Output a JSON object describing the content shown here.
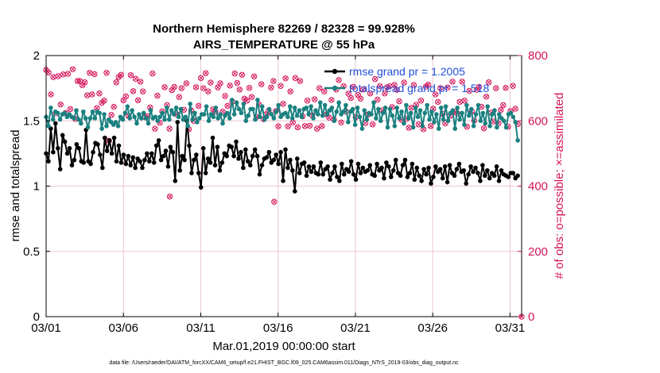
{
  "chart_data": {
    "type": "line",
    "title": "Northern Hemisphere 82269 / 82328 = 99.928%",
    "subtitle": "AIRS_TEMPERATURE @ 55 hPa",
    "xlabel": "Mar.01,2019 00:00:00 start",
    "ylabel": "rmse and totalspread",
    "ylabel_right": "# of obs: o=possible; ×=assimilated",
    "x_tick_labels": [
      "03/01",
      "03/06",
      "03/11",
      "03/16",
      "03/21",
      "03/26",
      "03/31"
    ],
    "x_tick_days": [
      0,
      5,
      10,
      15,
      20,
      25,
      30
    ],
    "xlim": [
      0,
      30.75
    ],
    "ylim": [
      0,
      2
    ],
    "y_ticks": [
      0,
      0.5,
      1,
      1.5,
      2
    ],
    "y_tick_labels": [
      "0",
      "0.5",
      "1",
      "1.5",
      "2"
    ],
    "ylim_right": [
      0,
      800
    ],
    "y_ticks_right": [
      0,
      200,
      400,
      600,
      800
    ],
    "y_tick_labels_right": [
      "0",
      "200",
      "400",
      "600",
      "800"
    ],
    "legend_position": "top-right",
    "colors": {
      "rmse": "#000000",
      "spread": "#1a8080",
      "obs": "#d4145a",
      "legend_text": "#1f4fd8",
      "grid": "#e8c8d0"
    },
    "series": [
      {
        "name": "rmse grand pr = 1.2005",
        "values": [
          1.25,
          1.19,
          1.44,
          1.26,
          1.48,
          1.29,
          1.13,
          1.39,
          1.34,
          1.25,
          1.29,
          1.16,
          1.2,
          1.32,
          1.29,
          1.19,
          1.18,
          1.43,
          1.19,
          1.17,
          1.26,
          1.33,
          1.32,
          1.24,
          1.14,
          1.37,
          1.27,
          1.35,
          1.25,
          1.37,
          1.19,
          1.31,
          1.18,
          1.24,
          1.17,
          1.23,
          1.16,
          1.22,
          1.14,
          1.21,
          1.19,
          1.14,
          1.2,
          1.25,
          1.19,
          1.25,
          1.18,
          1.31,
          1.35,
          1.2,
          1.23,
          1.27,
          1.15,
          1.3,
          1.26,
          1.04,
          1.49,
          1.12,
          1.23,
          1.2,
          1.5,
          1.31,
          1.1,
          1.2,
          1.24,
          1.1,
          0.99,
          1.29,
          1.1,
          1.21,
          1.18,
          1.37,
          1.16,
          1.3,
          1.12,
          1.18,
          1.25,
          1.23,
          1.31,
          1.3,
          1.23,
          1.34,
          1.21,
          1.26,
          1.14,
          1.28,
          1.19,
          1.16,
          1.23,
          1.28,
          1.23,
          1.09,
          1.16,
          1.21,
          1.22,
          1.26,
          1.18,
          1.2,
          1.24,
          1.17,
          1.26,
          1.04,
          1.28,
          1.14,
          1.2,
          1.12,
          0.96,
          1.21,
          1.1,
          1.17,
          1.18,
          1.08,
          1.15,
          1.11,
          1.15,
          1.1,
          1.09,
          1.18,
          1.09,
          1.13,
          1.15,
          1.05,
          1.1,
          1.15,
          1.07,
          1.04,
          1.17,
          1.09,
          1.13,
          1.11,
          1.19,
          1.09,
          1.05,
          1.17,
          1.1,
          1.14,
          1.11,
          1.12,
          1.16,
          1.09,
          1.08,
          1.17,
          1.12,
          1.14,
          1.06,
          1.18,
          1.15,
          1.07,
          1.12,
          1.2,
          1.1,
          1.08,
          1.16,
          1.2,
          1.07,
          1.1,
          1.17,
          1.05,
          1.14,
          1.08,
          1.04,
          1.13,
          1.09,
          1.14,
          1.02,
          1.07,
          1.15,
          1.11,
          1.13,
          1.06,
          1.15,
          1.03,
          1.16,
          1.1,
          1.08,
          1.13,
          1.17,
          1.11,
          1.12,
          1.02,
          1.09,
          1.15,
          1.11,
          1.14,
          1.1,
          1.04,
          1.16,
          1.08,
          1.12,
          1.06,
          1.1,
          1.08,
          1.15,
          1.04,
          1.12,
          1.09,
          1.08,
          1.07,
          1.1,
          1.1,
          1.06,
          1.08
        ]
      },
      {
        "name": "totalspread grand pr = 1.518",
        "values": [
          1.53,
          1.46,
          1.6,
          1.51,
          1.57,
          1.56,
          1.51,
          1.55,
          1.56,
          1.53,
          1.55,
          1.53,
          1.52,
          1.58,
          1.51,
          1.48,
          1.57,
          1.52,
          1.45,
          1.52,
          1.57,
          1.52,
          1.57,
          1.56,
          1.44,
          1.55,
          1.46,
          1.51,
          1.49,
          1.47,
          1.49,
          1.46,
          1.53,
          1.51,
          1.56,
          1.61,
          1.52,
          1.58,
          1.53,
          1.48,
          1.55,
          1.52,
          1.56,
          1.52,
          1.48,
          1.58,
          1.52,
          1.53,
          1.5,
          1.53,
          1.56,
          1.51,
          1.6,
          1.51,
          1.58,
          1.55,
          1.6,
          1.53,
          1.59,
          1.51,
          1.53,
          1.46,
          1.63,
          1.51,
          1.56,
          1.49,
          1.52,
          1.55,
          1.55,
          1.61,
          1.5,
          1.55,
          1.53,
          1.6,
          1.52,
          1.55,
          1.48,
          1.54,
          1.56,
          1.52,
          1.66,
          1.55,
          1.64,
          1.59,
          1.56,
          1.63,
          1.5,
          1.54,
          1.59,
          1.59,
          1.51,
          1.66,
          1.53,
          1.61,
          1.51,
          1.53,
          1.59,
          1.55,
          1.52,
          1.57,
          1.62,
          1.53,
          1.55,
          1.56,
          1.53,
          1.61,
          1.52,
          1.6,
          1.54,
          1.58,
          1.53,
          1.59,
          1.6,
          1.55,
          1.61,
          1.52,
          1.58,
          1.55,
          1.64,
          1.54,
          1.62,
          1.55,
          1.58,
          1.6,
          1.5,
          1.57,
          1.64,
          1.55,
          1.57,
          1.62,
          1.49,
          1.57,
          1.59,
          1.47,
          1.6,
          1.53,
          1.44,
          1.58,
          1.51,
          1.56,
          1.55,
          1.64,
          1.52,
          1.59,
          1.5,
          1.56,
          1.6,
          1.45,
          1.59,
          1.54,
          1.46,
          1.6,
          1.52,
          1.57,
          1.48,
          1.62,
          1.52,
          1.56,
          1.45,
          1.6,
          1.53,
          1.58,
          1.46,
          1.56,
          1.62,
          1.51,
          1.57,
          1.49,
          1.55,
          1.44,
          1.6,
          1.51,
          1.61,
          1.5,
          1.56,
          1.58,
          1.44,
          1.6,
          1.51,
          1.56,
          1.47,
          1.62,
          1.54,
          1.59,
          1.46,
          1.55,
          1.62,
          1.5,
          1.56,
          1.48,
          1.61,
          1.46,
          1.55,
          1.58,
          1.45,
          1.55,
          1.52,
          1.5,
          1.45,
          1.55,
          1.56,
          1.53,
          1.49,
          1.35
        ]
      }
    ],
    "obs_possible": [
      756,
      748,
      681,
      734,
      623,
      737,
      650,
      742,
      624,
      744,
      636,
      758,
      606,
      722,
      722,
      709,
      718,
      678,
      747,
      681,
      743,
      639,
      684,
      655,
      662,
      747,
      539,
      618,
      643,
      718,
      734,
      741,
      663,
      675,
      615,
      740,
      691,
      729,
      663,
      720,
      690,
      611,
      614,
      641,
      745,
      576,
      677,
      594,
      629,
      703,
      648,
      576,
      694,
      704,
      620,
      673,
      700,
      634,
      715,
      574,
      632,
      600,
      703,
      646,
      731,
      700,
      746,
      690,
      717,
      635,
      628,
      702,
      715,
      628,
      676,
      646,
      708,
      659,
      745,
      716,
      696,
      741,
      668,
      662,
      701,
      673,
      736,
      612,
      650,
      712,
      605,
      620,
      631,
      702,
      722,
      630,
      583,
      707,
      652,
      730,
      583,
      690,
      595,
      731,
      580,
      722,
      614,
      584,
      662,
      585,
      617,
      666,
      576,
      700,
      584,
      690,
      620,
      610,
      664,
      604,
      696,
      725,
      595,
      706,
      628,
      683,
      670,
      704,
      611,
      679,
      668,
      696,
      593,
      619,
      684,
      589,
      728,
      665,
      706,
      632,
      684,
      703,
      706,
      642,
      710,
      695,
      660,
      603,
      717,
      606,
      579,
      640,
      710,
      649,
      589,
      662,
      574,
      705,
      711,
      584,
      637,
      681,
      658,
      700,
      621,
      592,
      702,
      615,
      720,
      627,
      623,
      658,
      720,
      662,
      582,
      692,
      629,
      601,
      695,
      704,
      643,
      577,
      674,
      718,
      625,
      598,
      700,
      592,
      633,
      648,
      701,
      582,
      630,
      707,
      637,
      590
    ],
    "obs_assimilated": [
      756,
      748,
      681,
      734,
      623,
      737,
      650,
      742,
      624,
      744,
      636,
      758,
      606,
      722,
      722,
      709,
      718,
      678,
      747,
      681,
      743,
      639,
      684,
      655,
      662,
      747,
      539,
      618,
      643,
      718,
      734,
      741,
      663,
      675,
      615,
      740,
      691,
      729,
      663,
      720,
      690,
      611,
      614,
      641,
      745,
      576,
      677,
      594,
      629,
      703,
      648,
      576,
      694,
      704,
      620,
      673,
      700,
      634,
      715,
      574,
      632,
      600,
      703,
      646,
      731,
      700,
      746,
      690,
      717,
      635,
      628,
      702,
      715,
      628,
      676,
      646,
      708,
      659,
      745,
      716,
      696,
      741,
      668,
      662,
      701,
      673,
      736,
      612,
      650,
      712,
      605,
      620,
      631,
      702,
      722,
      630,
      583,
      707,
      652,
      730,
      583,
      690,
      595,
      731,
      580,
      722,
      614,
      584,
      662,
      585,
      617,
      666,
      576,
      700,
      584,
      690,
      620,
      610,
      664,
      604,
      696,
      725,
      595,
      706,
      628,
      683,
      670,
      704,
      611,
      679,
      668,
      696,
      593,
      619,
      684,
      589,
      728,
      665,
      706,
      632,
      684,
      703,
      706,
      642,
      710,
      695,
      660,
      603,
      717,
      606,
      579,
      640,
      710,
      649,
      589,
      662,
      574,
      705,
      711,
      584,
      637,
      681,
      658,
      700,
      621,
      592,
      702,
      615,
      720,
      627,
      623,
      658,
      720,
      662,
      582,
      692,
      629,
      601,
      695,
      704,
      643,
      577,
      674,
      718,
      625,
      598,
      700,
      592,
      633,
      648,
      701,
      582,
      630,
      707,
      637,
      590
    ],
    "obs_outliers": [
      {
        "day": 8.0,
        "count": 368
      },
      {
        "day": 14.75,
        "count": 352
      },
      {
        "day": 30.75,
        "count": 0
      }
    ],
    "footnote": "data file: /Users/raeder/DAI/ATM_forcXX/CAM6_setup/f.e21.FHIST_BGC.f09_025.CAM6assim.011/Diags_NTrS_2019-03/obs_diag_output.nc"
  }
}
